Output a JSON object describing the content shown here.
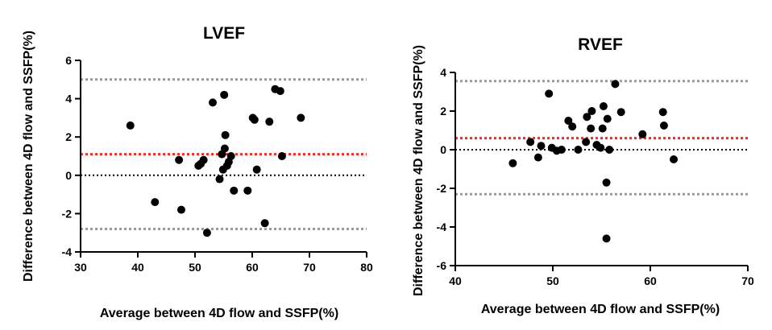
{
  "chart_data": [
    {
      "type": "scatter",
      "title": "LVEF",
      "xlabel": "Average between 4D flow and SSFP(%)",
      "ylabel": "Difference between 4D flow and SSFP(%)",
      "xlim": [
        30,
        80
      ],
      "ylim": [
        -4,
        6
      ],
      "xticks": [
        30,
        40,
        50,
        60,
        70,
        80
      ],
      "yticks": [
        -4,
        -2,
        0,
        2,
        4,
        6
      ],
      "grid": false,
      "reference_lines": [
        {
          "name": "upper limit of agreement",
          "y": 5.0,
          "color": "#999999",
          "style": "dotted"
        },
        {
          "name": "mean difference",
          "y": 1.1,
          "color": "#e8302a",
          "style": "dotted"
        },
        {
          "name": "zero",
          "y": 0,
          "color": "#000000",
          "style": "dotted"
        },
        {
          "name": "lower limit of agreement",
          "y": -2.8,
          "color": "#999999",
          "style": "dotted"
        }
      ],
      "points": [
        [
          38.7,
          2.6
        ],
        [
          43.0,
          -1.4
        ],
        [
          47.2,
          0.8
        ],
        [
          47.6,
          -1.8
        ],
        [
          50.6,
          0.5
        ],
        [
          51.0,
          0.6
        ],
        [
          51.5,
          0.8
        ],
        [
          52.1,
          -3.0
        ],
        [
          53.1,
          3.8
        ],
        [
          54.3,
          -0.2
        ],
        [
          54.7,
          1.1
        ],
        [
          54.9,
          0.3
        ],
        [
          55.1,
          4.2
        ],
        [
          55.2,
          1.4
        ],
        [
          55.3,
          2.1
        ],
        [
          55.6,
          0.5
        ],
        [
          55.9,
          0.7
        ],
        [
          56.3,
          1.0
        ],
        [
          56.8,
          -0.8
        ],
        [
          59.2,
          -0.8
        ],
        [
          60.1,
          3.0
        ],
        [
          60.4,
          2.9
        ],
        [
          60.8,
          0.3
        ],
        [
          62.2,
          -2.5
        ],
        [
          63.0,
          2.8
        ],
        [
          64.0,
          4.5
        ],
        [
          64.9,
          4.4
        ],
        [
          65.2,
          1.0
        ],
        [
          68.5,
          3.0
        ]
      ]
    },
    {
      "type": "scatter",
      "title": "RVEF",
      "xlabel": "Average between 4D flow and SSFP(%)",
      "ylabel": "Difference between 4D flow and SSFP(%)",
      "xlim": [
        40,
        70
      ],
      "ylim": [
        -6,
        4
      ],
      "xticks": [
        40,
        50,
        60,
        70
      ],
      "yticks": [
        -6,
        -4,
        -2,
        0,
        2,
        4
      ],
      "grid": false,
      "reference_lines": [
        {
          "name": "upper limit of agreement",
          "y": 3.55,
          "color": "#999999",
          "style": "dotted"
        },
        {
          "name": "mean difference",
          "y": 0.6,
          "color": "#e8302a",
          "style": "dotted"
        },
        {
          "name": "zero",
          "y": 0,
          "color": "#000000",
          "style": "dotted"
        },
        {
          "name": "lower limit of agreement",
          "y": -2.3,
          "color": "#999999",
          "style": "dotted"
        }
      ],
      "points": [
        [
          45.9,
          -0.7
        ],
        [
          47.7,
          0.4
        ],
        [
          48.5,
          -0.4
        ],
        [
          48.8,
          0.2
        ],
        [
          49.6,
          2.9
        ],
        [
          49.9,
          0.1
        ],
        [
          50.4,
          -0.05
        ],
        [
          50.9,
          0.0
        ],
        [
          51.6,
          1.5
        ],
        [
          52.0,
          1.2
        ],
        [
          52.6,
          0.0
        ],
        [
          53.4,
          0.4
        ],
        [
          53.5,
          1.7
        ],
        [
          53.9,
          1.1
        ],
        [
          54.0,
          2.0
        ],
        [
          54.5,
          0.25
        ],
        [
          54.9,
          0.1
        ],
        [
          55.1,
          1.1
        ],
        [
          55.2,
          2.25
        ],
        [
          55.5,
          -1.7
        ],
        [
          55.5,
          -4.6
        ],
        [
          55.6,
          1.6
        ],
        [
          55.8,
          0.0
        ],
        [
          56.4,
          3.4
        ],
        [
          57.0,
          1.95
        ],
        [
          59.2,
          0.8
        ],
        [
          61.3,
          1.95
        ],
        [
          61.4,
          1.25
        ],
        [
          62.4,
          -0.5
        ]
      ]
    }
  ]
}
